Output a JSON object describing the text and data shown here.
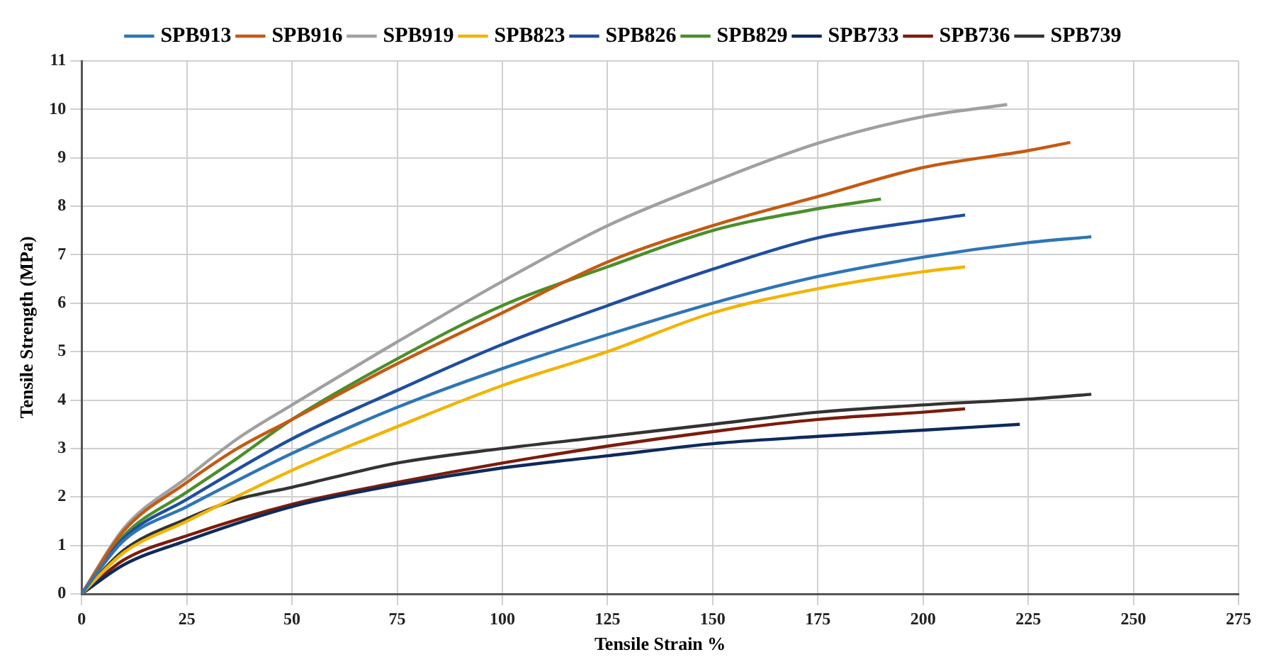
{
  "chart_data": {
    "type": "line",
    "xlabel": "Tensile Strain %",
    "ylabel": "Tensile Strength (MPa)",
    "xlim": [
      0,
      275
    ],
    "xticks": [
      0,
      25,
      50,
      75,
      100,
      125,
      150,
      175,
      200,
      225,
      250,
      275
    ],
    "ylim": [
      0,
      11
    ],
    "yticks": [
      0,
      1,
      2,
      3,
      4,
      5,
      6,
      7,
      8,
      9,
      10,
      11
    ],
    "grid": true,
    "legend": "top",
    "marker": "none",
    "line_style": "solid",
    "series": [
      {
        "name": "SPB913",
        "color": "#2e75b6",
        "x": [
          0,
          10,
          25,
          50,
          75,
          100,
          125,
          150,
          175,
          200,
          225,
          240
        ],
        "values": [
          0,
          1.1,
          1.8,
          2.9,
          3.85,
          4.65,
          5.35,
          6.0,
          6.55,
          6.95,
          7.25,
          7.37
        ]
      },
      {
        "name": "SPB916",
        "color": "#c55a11",
        "x": [
          0,
          10,
          25,
          37,
          50,
          75,
          100,
          125,
          150,
          175,
          200,
          225,
          235
        ],
        "values": [
          0,
          1.3,
          2.3,
          3.0,
          3.6,
          4.75,
          5.8,
          6.85,
          7.6,
          8.2,
          8.8,
          9.15,
          9.32
        ]
      },
      {
        "name": "SPB919",
        "color": "#a0a0a0",
        "x": [
          0,
          10,
          25,
          37,
          50,
          75,
          100,
          125,
          150,
          175,
          200,
          220
        ],
        "values": [
          0,
          1.35,
          2.4,
          3.2,
          3.9,
          5.2,
          6.45,
          7.6,
          8.5,
          9.3,
          9.85,
          10.1
        ]
      },
      {
        "name": "SPB823",
        "color": "#f2b400",
        "x": [
          0,
          10,
          25,
          50,
          75,
          100,
          125,
          150,
          175,
          200,
          210
        ],
        "values": [
          0,
          0.85,
          1.5,
          2.55,
          3.45,
          4.3,
          5.0,
          5.8,
          6.3,
          6.65,
          6.75
        ]
      },
      {
        "name": "SPB826",
        "color": "#1f4e9f",
        "x": [
          0,
          10,
          25,
          50,
          75,
          100,
          125,
          150,
          175,
          200,
          210
        ],
        "values": [
          0,
          1.15,
          1.95,
          3.2,
          4.2,
          5.15,
          5.95,
          6.7,
          7.35,
          7.7,
          7.82
        ]
      },
      {
        "name": "SPB829",
        "color": "#4a8f2a",
        "x": [
          0,
          10,
          25,
          37,
          50,
          75,
          100,
          125,
          150,
          175,
          190
        ],
        "values": [
          0,
          1.2,
          2.1,
          2.8,
          3.6,
          4.85,
          5.95,
          6.75,
          7.5,
          7.95,
          8.15
        ]
      },
      {
        "name": "SPB733",
        "color": "#0d2a5c",
        "x": [
          0,
          10,
          25,
          50,
          75,
          100,
          125,
          150,
          175,
          200,
          223
        ],
        "values": [
          0,
          0.6,
          1.1,
          1.8,
          2.25,
          2.6,
          2.85,
          3.1,
          3.25,
          3.38,
          3.5
        ]
      },
      {
        "name": "SPB736",
        "color": "#7b1c0c",
        "x": [
          0,
          10,
          25,
          50,
          75,
          100,
          125,
          150,
          175,
          200,
          210
        ],
        "values": [
          0,
          0.7,
          1.2,
          1.85,
          2.3,
          2.7,
          3.05,
          3.35,
          3.6,
          3.75,
          3.82
        ]
      },
      {
        "name": "SPB739",
        "color": "#333333",
        "x": [
          0,
          10,
          25,
          37,
          50,
          75,
          100,
          125,
          150,
          175,
          200,
          225,
          240
        ],
        "values": [
          0,
          0.9,
          1.55,
          1.95,
          2.2,
          2.7,
          3.0,
          3.25,
          3.5,
          3.75,
          3.9,
          4.02,
          4.12
        ]
      }
    ]
  }
}
